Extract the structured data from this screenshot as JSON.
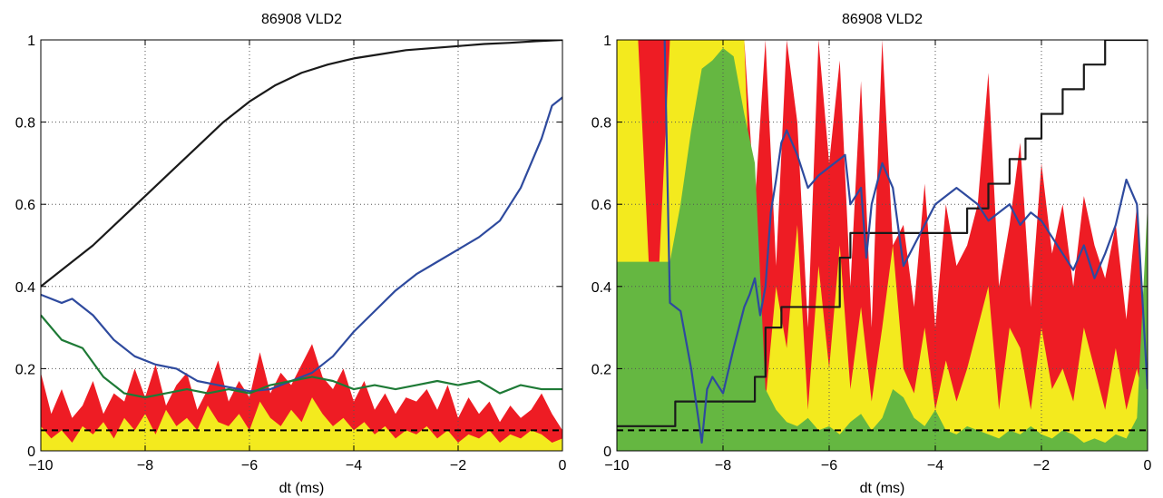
{
  "chart_data": [
    {
      "type": "area",
      "title": "86908 VLD2",
      "xlabel": "dt (ms)",
      "ylabel": "",
      "xlim": [
        -10,
        0
      ],
      "ylim": [
        0,
        1
      ],
      "grid": true,
      "x_ticks": [
        -10,
        -8,
        -6,
        -4,
        -2,
        0
      ],
      "x_tick_labels": [
        "−10",
        "−8",
        "−6",
        "−4",
        "−2",
        "0"
      ],
      "y_ticks": [
        0,
        0.2,
        0.4,
        0.6,
        0.8,
        1
      ],
      "y_tick_labels": [
        "0",
        "0.2",
        "0.4",
        "0.6",
        "0.8",
        "1"
      ],
      "areas": [
        {
          "color": "#ee1c24",
          "x": [
            -10,
            -9.8,
            -9.6,
            -9.4,
            -9.2,
            -9,
            -8.8,
            -8.6,
            -8.4,
            -8.2,
            -8,
            -7.8,
            -7.6,
            -7.4,
            -7.2,
            -7,
            -6.8,
            -6.6,
            -6.4,
            -6.2,
            -6,
            -5.8,
            -5.6,
            -5.4,
            -5.2,
            -5,
            -4.8,
            -4.6,
            -4.4,
            -4.2,
            -4,
            -3.8,
            -3.6,
            -3.4,
            -3.2,
            -3,
            -2.8,
            -2.6,
            -2.4,
            -2.2,
            -2,
            -1.8,
            -1.6,
            -1.4,
            -1.2,
            -1,
            -0.8,
            -0.6,
            -0.4,
            -0.2,
            0
          ],
          "values": [
            0.19,
            0.09,
            0.15,
            0.08,
            0.11,
            0.17,
            0.09,
            0.14,
            0.12,
            0.2,
            0.13,
            0.21,
            0.11,
            0.16,
            0.19,
            0.1,
            0.15,
            0.22,
            0.12,
            0.17,
            0.13,
            0.24,
            0.14,
            0.19,
            0.16,
            0.21,
            0.26,
            0.18,
            0.15,
            0.2,
            0.12,
            0.17,
            0.1,
            0.14,
            0.09,
            0.13,
            0.12,
            0.15,
            0.1,
            0.16,
            0.08,
            0.13,
            0.09,
            0.12,
            0.07,
            0.11,
            0.08,
            0.1,
            0.14,
            0.09,
            0.05
          ]
        },
        {
          "color": "#f3ea1e",
          "x": [
            -10,
            -9.8,
            -9.6,
            -9.4,
            -9.2,
            -9,
            -8.8,
            -8.6,
            -8.4,
            -8.2,
            -8,
            -7.8,
            -7.6,
            -7.4,
            -7.2,
            -7,
            -6.8,
            -6.6,
            -6.4,
            -6.2,
            -6,
            -5.8,
            -5.6,
            -5.4,
            -5.2,
            -5,
            -4.8,
            -4.6,
            -4.4,
            -4.2,
            -4,
            -3.8,
            -3.6,
            -3.4,
            -3.2,
            -3,
            -2.8,
            -2.6,
            -2.4,
            -2.2,
            -2,
            -1.8,
            -1.6,
            -1.4,
            -1.2,
            -1,
            -0.8,
            -0.6,
            -0.4,
            -0.2,
            0
          ],
          "values": [
            0.06,
            0.03,
            0.05,
            0.02,
            0.06,
            0.04,
            0.07,
            0.03,
            0.08,
            0.05,
            0.09,
            0.04,
            0.1,
            0.06,
            0.08,
            0.05,
            0.11,
            0.07,
            0.06,
            0.09,
            0.05,
            0.12,
            0.08,
            0.06,
            0.1,
            0.07,
            0.13,
            0.09,
            0.06,
            0.08,
            0.05,
            0.07,
            0.04,
            0.06,
            0.03,
            0.05,
            0.04,
            0.06,
            0.03,
            0.05,
            0.02,
            0.04,
            0.03,
            0.05,
            0.02,
            0.04,
            0.03,
            0.05,
            0.04,
            0.02,
            0.03
          ]
        }
      ],
      "series": [
        {
          "color": "#1a1a1a",
          "x": [
            -10,
            -9.5,
            -9,
            -8.5,
            -8,
            -7.5,
            -7,
            -6.5,
            -6,
            -5.5,
            -5,
            -4.5,
            -4,
            -3.5,
            -3,
            -2.5,
            -2,
            -1.5,
            -1,
            -0.5,
            0
          ],
          "values": [
            0.4,
            0.45,
            0.5,
            0.56,
            0.62,
            0.68,
            0.74,
            0.8,
            0.85,
            0.89,
            0.92,
            0.94,
            0.955,
            0.965,
            0.975,
            0.98,
            0.985,
            0.99,
            0.993,
            0.997,
            1.0
          ]
        },
        {
          "color": "#2e4a9e",
          "x": [
            -10,
            -9.6,
            -9.4,
            -9,
            -8.6,
            -8.2,
            -7.8,
            -7.4,
            -7,
            -6.6,
            -6.2,
            -6,
            -5.6,
            -5.2,
            -4.8,
            -4.4,
            -4,
            -3.6,
            -3.2,
            -2.8,
            -2.4,
            -2,
            -1.6,
            -1.2,
            -0.8,
            -0.4,
            -0.2,
            0
          ],
          "values": [
            0.38,
            0.36,
            0.37,
            0.33,
            0.27,
            0.23,
            0.21,
            0.2,
            0.17,
            0.16,
            0.15,
            0.145,
            0.15,
            0.17,
            0.19,
            0.23,
            0.29,
            0.34,
            0.39,
            0.43,
            0.46,
            0.49,
            0.52,
            0.56,
            0.64,
            0.76,
            0.84,
            0.86
          ]
        },
        {
          "color": "#1e7a36",
          "x": [
            -10,
            -9.6,
            -9.2,
            -8.8,
            -8.4,
            -8,
            -7.6,
            -7.2,
            -6.8,
            -6.4,
            -6,
            -5.6,
            -5.2,
            -4.8,
            -4.4,
            -4,
            -3.6,
            -3.2,
            -2.8,
            -2.4,
            -2,
            -1.6,
            -1.2,
            -0.8,
            -0.4,
            0
          ],
          "values": [
            0.33,
            0.27,
            0.25,
            0.18,
            0.14,
            0.13,
            0.14,
            0.15,
            0.14,
            0.15,
            0.14,
            0.16,
            0.17,
            0.18,
            0.17,
            0.15,
            0.16,
            0.15,
            0.16,
            0.17,
            0.16,
            0.17,
            0.14,
            0.16,
            0.15,
            0.15
          ]
        }
      ],
      "reference_line": {
        "y": 0.05,
        "style": "dashed",
        "color": "#000000"
      }
    },
    {
      "type": "area",
      "title": "86908 VLD2",
      "xlabel": "dt (ms)",
      "ylabel": "",
      "xlim": [
        -10,
        0
      ],
      "ylim": [
        0,
        1
      ],
      "grid": true,
      "x_ticks": [
        -10,
        -8,
        -6,
        -4,
        -2,
        0
      ],
      "x_tick_labels": [
        "−10",
        "−8",
        "−6",
        "−4",
        "−2",
        "0"
      ],
      "y_ticks": [
        0,
        0.2,
        0.4,
        0.6,
        0.8,
        1
      ],
      "y_tick_labels": [
        "0",
        "0.2",
        "0.4",
        "0.6",
        "0.8",
        "1"
      ],
      "areas": [
        {
          "color": "#ee1c24",
          "x": [
            -10,
            -9.8,
            -9.6,
            -9.4,
            -9.2,
            -9,
            -8.8,
            -8.6,
            -8.4,
            -8.2,
            -8,
            -7.8,
            -7.6,
            -7.4,
            -7.2,
            -7,
            -6.8,
            -6.6,
            -6.4,
            -6.2,
            -6,
            -5.8,
            -5.6,
            -5.4,
            -5.2,
            -5,
            -4.8,
            -4.6,
            -4.4,
            -4.2,
            -4,
            -3.8,
            -3.6,
            -3.4,
            -3.2,
            -3,
            -2.8,
            -2.6,
            -2.4,
            -2.2,
            -2,
            -1.8,
            -1.6,
            -1.4,
            -1.2,
            -1,
            -0.8,
            -0.6,
            -0.4,
            -0.2,
            0
          ],
          "values": [
            1,
            1,
            1,
            1,
            1,
            1,
            1,
            1,
            1,
            1,
            1,
            1,
            1,
            0.6,
            1,
            0.45,
            1,
            0.8,
            0.3,
            1,
            0.7,
            0.95,
            0.4,
            0.9,
            0.3,
            1,
            0.5,
            0.55,
            0.35,
            0.65,
            0.3,
            0.6,
            0.45,
            0.5,
            0.6,
            0.92,
            0.4,
            0.55,
            0.75,
            0.35,
            0.7,
            0.48,
            0.6,
            0.4,
            0.62,
            0.5,
            0.42,
            0.55,
            0.32,
            0.6,
            0.2
          ]
        },
        {
          "color": "#f3ea1e",
          "x": [
            -10,
            -9.8,
            -9.6,
            -9.4,
            -9.2,
            -9,
            -8.8,
            -8.6,
            -8.4,
            -8.2,
            -8,
            -7.8,
            -7.6,
            -7.4,
            -7.2,
            -7,
            -6.8,
            -6.6,
            -6.4,
            -6.2,
            -6,
            -5.8,
            -5.6,
            -5.4,
            -5.2,
            -5,
            -4.8,
            -4.6,
            -4.4,
            -4.2,
            -4,
            -3.8,
            -3.6,
            -3.4,
            -3.2,
            -3,
            -2.8,
            -2.6,
            -2.4,
            -2.2,
            -2,
            -1.8,
            -1.6,
            -1.4,
            -1.2,
            -1,
            -0.8,
            -0.6,
            -0.4,
            -0.2,
            0
          ],
          "values": [
            1,
            1,
            1,
            0.46,
            0.46,
            1,
            1,
            1,
            1,
            1,
            1,
            1,
            1,
            0.3,
            0.12,
            0.4,
            0.25,
            0.55,
            0.1,
            0.45,
            0.2,
            0.5,
            0.15,
            0.35,
            0.12,
            0.3,
            0.5,
            0.2,
            0.14,
            0.3,
            0.1,
            0.22,
            0.12,
            0.2,
            0.3,
            0.4,
            0.1,
            0.3,
            0.25,
            0.1,
            0.3,
            0.15,
            0.2,
            0.12,
            0.3,
            0.2,
            0.1,
            0.25,
            0.1,
            0.2,
            0.08
          ]
        },
        {
          "color": "#65b741",
          "x": [
            -10,
            -9.8,
            -9.6,
            -9.4,
            -9.2,
            -9,
            -8.8,
            -8.6,
            -8.4,
            -8.2,
            -8,
            -7.8,
            -7.6,
            -7.4,
            -7.2,
            -7,
            -6.8,
            -6.6,
            -6.4,
            -6.2,
            -6,
            -5.8,
            -5.6,
            -5.4,
            -5.2,
            -5,
            -4.8,
            -4.6,
            -4.4,
            -4.2,
            -4,
            -3.8,
            -3.6,
            -3.4,
            -3.2,
            -3,
            -2.8,
            -2.6,
            -2.4,
            -2.2,
            -2,
            -1.8,
            -1.6,
            -1.4,
            -1.2,
            -1,
            -0.8,
            -0.6,
            -0.4,
            -0.2,
            0
          ],
          "values": [
            0.46,
            0.46,
            0.46,
            0.46,
            0.46,
            0.46,
            0.6,
            0.78,
            0.93,
            0.95,
            0.98,
            0.96,
            0.82,
            0.7,
            0.15,
            0.1,
            0.07,
            0.06,
            0.08,
            0.05,
            0.06,
            0.04,
            0.07,
            0.09,
            0.05,
            0.08,
            0.15,
            0.13,
            0.08,
            0.06,
            0.1,
            0.05,
            0.04,
            0.06,
            0.05,
            0.04,
            0.03,
            0.05,
            0.04,
            0.06,
            0.04,
            0.03,
            0.05,
            0.04,
            0.02,
            0.03,
            0.02,
            0.04,
            0.03,
            0.08,
            0.6
          ]
        }
      ],
      "series": [
        {
          "color": "#1a1a1a",
          "x": [
            -10,
            -9.4,
            -9.4,
            -8.9,
            -8.9,
            -8.2,
            -8.2,
            -7.8,
            -7.8,
            -7.4,
            -7.4,
            -7.2,
            -7.2,
            -6.9,
            -6.9,
            -6.4,
            -6.4,
            -5.8,
            -5.8,
            -5.6,
            -5.6,
            -3.4,
            -3.4,
            -3.0,
            -3.0,
            -2.6,
            -2.6,
            -2.3,
            -2.3,
            -2.0,
            -2.0,
            -1.6,
            -1.6,
            -1.2,
            -1.2,
            -0.8,
            -0.8,
            -0.4,
            -0.4,
            0
          ],
          "values": [
            0.06,
            0.06,
            0.06,
            0.06,
            0.12,
            0.12,
            0.12,
            0.12,
            0.12,
            0.12,
            0.18,
            0.18,
            0.3,
            0.3,
            0.35,
            0.35,
            0.35,
            0.35,
            0.47,
            0.47,
            0.53,
            0.53,
            0.59,
            0.59,
            0.65,
            0.65,
            0.71,
            0.71,
            0.76,
            0.76,
            0.82,
            0.82,
            0.88,
            0.88,
            0.94,
            0.94,
            1,
            1,
            1,
            1
          ]
        },
        {
          "color": "#2e4a9e",
          "x": [
            -9.1,
            -9,
            -8.8,
            -8.6,
            -8.4,
            -8.3,
            -8.2,
            -8,
            -7.8,
            -7.6,
            -7.5,
            -7.4,
            -7.3,
            -7.2,
            -7.1,
            -7,
            -6.9,
            -6.8,
            -6.6,
            -6.4,
            -6.2,
            -6,
            -5.8,
            -5.7,
            -5.6,
            -5.4,
            -5.3,
            -5.2,
            -5,
            -4.8,
            -4.6,
            -4.4,
            -4.2,
            -4,
            -3.8,
            -3.6,
            -3.4,
            -3.2,
            -3,
            -2.8,
            -2.6,
            -2.4,
            -2.2,
            -2,
            -1.8,
            -1.6,
            -1.4,
            -1.2,
            -1,
            -0.8,
            -0.6,
            -0.4,
            -0.2,
            0
          ],
          "values": [
            1,
            0.36,
            0.34,
            0.2,
            0.02,
            0.15,
            0.18,
            0.14,
            0.25,
            0.35,
            0.38,
            0.42,
            0.33,
            0.4,
            0.58,
            0.66,
            0.75,
            0.78,
            0.72,
            0.64,
            0.67,
            0.69,
            0.71,
            0.72,
            0.6,
            0.64,
            0.47,
            0.6,
            0.7,
            0.64,
            0.45,
            0.5,
            0.55,
            0.6,
            0.62,
            0.64,
            0.62,
            0.6,
            0.56,
            0.58,
            0.6,
            0.55,
            0.58,
            0.56,
            0.52,
            0.48,
            0.44,
            0.5,
            0.42,
            0.48,
            0.55,
            0.66,
            0.6,
            0.15
          ]
        }
      ],
      "reference_line": {
        "y": 0.05,
        "style": "dashed",
        "color": "#000000"
      }
    }
  ]
}
